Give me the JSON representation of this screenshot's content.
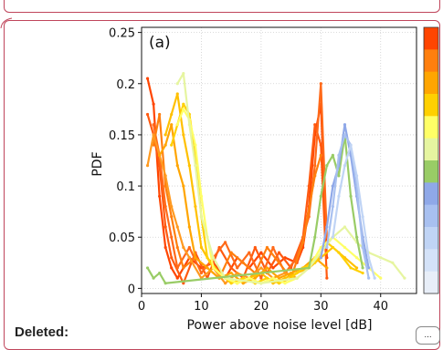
{
  "document": {
    "deleted_label": "Deleted:",
    "more_button_label": "..."
  },
  "chart_data": {
    "type": "line",
    "panel_label": "(a)",
    "xlabel": "Power above noise level [dB]",
    "ylabel": "PDF",
    "xlim": [
      0,
      46
    ],
    "ylim": [
      -0.005,
      0.255
    ],
    "x_ticks": [
      0,
      10,
      20,
      30,
      40
    ],
    "y_ticks": [
      0,
      0.05,
      0.1,
      0.15,
      0.2,
      0.25
    ],
    "y_tick_labels": [
      "0",
      "0.05",
      "0.1",
      "0.15",
      "0.2",
      "0.25"
    ],
    "grid": true,
    "colorbar_colors": [
      "#ff4500",
      "#ff7f0e",
      "#ffa500",
      "#ffd000",
      "#ffff66",
      "#e6f5a0",
      "#99cc66",
      "#8fa8e8",
      "#a8c0f0",
      "#c0d4f5",
      "#d4e2f8",
      "#e8eef8"
    ],
    "series": [
      {
        "color": "#ff4500",
        "x": [
          1,
          2,
          3,
          4,
          5,
          6,
          8,
          10,
          12,
          14,
          16,
          18,
          20,
          22,
          24,
          26,
          27,
          28,
          29,
          30,
          31
        ],
        "y": [
          0.205,
          0.18,
          0.09,
          0.04,
          0.02,
          0.01,
          0.03,
          0.02,
          0.025,
          0.01,
          0.03,
          0.02,
          0.035,
          0.02,
          0.03,
          0.025,
          0.04,
          0.08,
          0.15,
          0.18,
          0.03
        ]
      },
      {
        "color": "#ff5a10",
        "x": [
          1,
          2,
          3,
          4,
          5,
          7,
          9,
          11,
          13,
          15,
          17,
          19,
          21,
          23,
          25,
          27,
          28,
          29,
          30,
          31
        ],
        "y": [
          0.17,
          0.15,
          0.12,
          0.06,
          0.03,
          0.005,
          0.035,
          0.01,
          0.04,
          0.02,
          0.01,
          0.04,
          0.015,
          0.035,
          0.02,
          0.05,
          0.1,
          0.16,
          0.14,
          0.01
        ]
      },
      {
        "color": "#ff6a1a",
        "x": [
          2,
          3,
          4,
          5,
          6,
          8,
          10,
          12,
          14,
          16,
          18,
          20,
          22,
          24,
          26,
          28,
          29,
          30,
          31
        ],
        "y": [
          0.16,
          0.13,
          0.08,
          0.05,
          0.02,
          0.04,
          0.015,
          0.03,
          0.045,
          0.02,
          0.035,
          0.01,
          0.04,
          0.015,
          0.03,
          0.07,
          0.12,
          0.2,
          0.05
        ]
      },
      {
        "color": "#ff7f0e",
        "x": [
          2,
          3,
          4,
          5,
          6,
          7,
          9,
          11,
          13,
          15,
          17,
          19,
          21,
          23,
          25,
          27,
          29,
          30
        ],
        "y": [
          0.14,
          0.17,
          0.1,
          0.07,
          0.04,
          0.02,
          0.03,
          0.02,
          0.01,
          0.035,
          0.025,
          0.015,
          0.04,
          0.025,
          0.01,
          0.045,
          0.11,
          0.13
        ]
      },
      {
        "color": "#ff9a20",
        "x": [
          1,
          2,
          3,
          4,
          5,
          6,
          7,
          8,
          10,
          12,
          14,
          16,
          18,
          20,
          22,
          24,
          26,
          28
        ],
        "y": [
          0.12,
          0.15,
          0.13,
          0.11,
          0.08,
          0.06,
          0.04,
          0.03,
          0.01,
          0.02,
          0.005,
          0.015,
          0.01,
          0.02,
          0.01,
          0.015,
          0.01,
          0.02
        ]
      },
      {
        "color": "#ffa500",
        "x": [
          3,
          4,
          5,
          6,
          7,
          8,
          9,
          11,
          13,
          15,
          17,
          19,
          21,
          23,
          25,
          27,
          29,
          31
        ],
        "y": [
          0.13,
          0.14,
          0.16,
          0.12,
          0.1,
          0.06,
          0.03,
          0.02,
          0.01,
          0.015,
          0.005,
          0.01,
          0.02,
          0.01,
          0.015,
          0.02,
          0.03,
          0.02
        ]
      },
      {
        "color": "#ffc000",
        "x": [
          4,
          5,
          6,
          7,
          8,
          9,
          10,
          12,
          14,
          16,
          18,
          20,
          22,
          24,
          26,
          28,
          30,
          32,
          34,
          36
        ],
        "y": [
          0.15,
          0.17,
          0.19,
          0.15,
          0.12,
          0.08,
          0.04,
          0.02,
          0.01,
          0.005,
          0.01,
          0.015,
          0.005,
          0.01,
          0.015,
          0.02,
          0.03,
          0.04,
          0.03,
          0.02
        ]
      },
      {
        "color": "#ffd000",
        "x": [
          5,
          6,
          7,
          8,
          9,
          10,
          11,
          13,
          15,
          17,
          19,
          21,
          23,
          25,
          27,
          29,
          31,
          33,
          35,
          37
        ],
        "y": [
          0.14,
          0.16,
          0.18,
          0.17,
          0.13,
          0.07,
          0.03,
          0.015,
          0.005,
          0.01,
          0.005,
          0.01,
          0.005,
          0.01,
          0.02,
          0.025,
          0.045,
          0.035,
          0.02,
          0.015
        ]
      },
      {
        "color": "#ffff66",
        "x": [
          6,
          7,
          8,
          9,
          10,
          11,
          12,
          14,
          16,
          18,
          20,
          22,
          24,
          26,
          28,
          30,
          32,
          34,
          36,
          38,
          40
        ],
        "y": [
          0.16,
          0.175,
          0.165,
          0.14,
          0.09,
          0.05,
          0.02,
          0.01,
          0.005,
          0.01,
          0.005,
          0.01,
          0.005,
          0.01,
          0.02,
          0.04,
          0.05,
          0.04,
          0.03,
          0.02,
          0.01
        ]
      },
      {
        "color": "#e6f5a0",
        "x": [
          6,
          7,
          8,
          9,
          10,
          12,
          14,
          20,
          26,
          28,
          30,
          32,
          34,
          36,
          38,
          40,
          42,
          44
        ],
        "y": [
          0.2,
          0.21,
          0.16,
          0.12,
          0.07,
          0.03,
          0.01,
          0.005,
          0.01,
          0.02,
          0.035,
          0.05,
          0.06,
          0.045,
          0.035,
          0.03,
          0.025,
          0.01
        ]
      },
      {
        "color": "#99cc66",
        "x": [
          1,
          2,
          3,
          4,
          28,
          29,
          30,
          31,
          32,
          33,
          34,
          35,
          36,
          37
        ],
        "y": [
          0.02,
          0.01,
          0.015,
          0.005,
          0.02,
          0.05,
          0.09,
          0.12,
          0.13,
          0.11,
          0.15,
          0.09,
          0.05,
          0.02
        ]
      },
      {
        "color": "#8fa8e8",
        "x": [
          30,
          31,
          32,
          33,
          34,
          35,
          36,
          37,
          38
        ],
        "y": [
          0.03,
          0.06,
          0.1,
          0.12,
          0.16,
          0.13,
          0.09,
          0.05,
          0.02
        ]
      },
      {
        "color": "#a8c0f0",
        "x": [
          31,
          32,
          33,
          34,
          35,
          36,
          37,
          38
        ],
        "y": [
          0.04,
          0.08,
          0.13,
          0.15,
          0.14,
          0.1,
          0.04,
          0.01
        ]
      },
      {
        "color": "#c0d4f5",
        "x": [
          32,
          33,
          34,
          35,
          36,
          37,
          38,
          39
        ],
        "y": [
          0.05,
          0.09,
          0.12,
          0.14,
          0.11,
          0.07,
          0.03,
          0.01
        ]
      }
    ]
  }
}
